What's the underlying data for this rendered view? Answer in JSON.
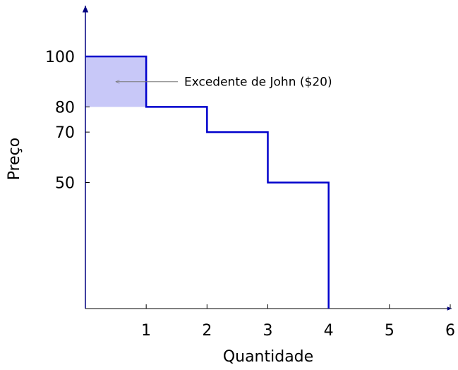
{
  "chart_data": {
    "type": "line",
    "subtype": "step-demand-curve",
    "xlabel": "Quantidade",
    "ylabel": "Preço",
    "xlim": [
      0,
      6
    ],
    "ylim": [
      0,
      100
    ],
    "x_ticks": [
      "1",
      "2",
      "3",
      "4",
      "5",
      "6"
    ],
    "y_ticks": [
      "50",
      "70",
      "80",
      "100"
    ],
    "grid": false,
    "series": [
      {
        "color": "#0000cc",
        "points": [
          {
            "x": 0,
            "y": 100
          },
          {
            "x": 1,
            "y": 100
          },
          {
            "x": 1,
            "y": 80
          },
          {
            "x": 2,
            "y": 80
          },
          {
            "x": 2,
            "y": 70
          },
          {
            "x": 3,
            "y": 70
          },
          {
            "x": 3,
            "y": 50
          },
          {
            "x": 4,
            "y": 50
          },
          {
            "x": 4,
            "y": 0
          }
        ]
      }
    ],
    "shaded_region": {
      "x_from": 0,
      "x_to": 1,
      "y_from": 80,
      "y_to": 100,
      "fill_color": "#c8c8f8"
    },
    "annotation": {
      "text": "Excedente de John ($20)",
      "arrow_target": {
        "x": 0.5,
        "y": 90
      }
    }
  }
}
